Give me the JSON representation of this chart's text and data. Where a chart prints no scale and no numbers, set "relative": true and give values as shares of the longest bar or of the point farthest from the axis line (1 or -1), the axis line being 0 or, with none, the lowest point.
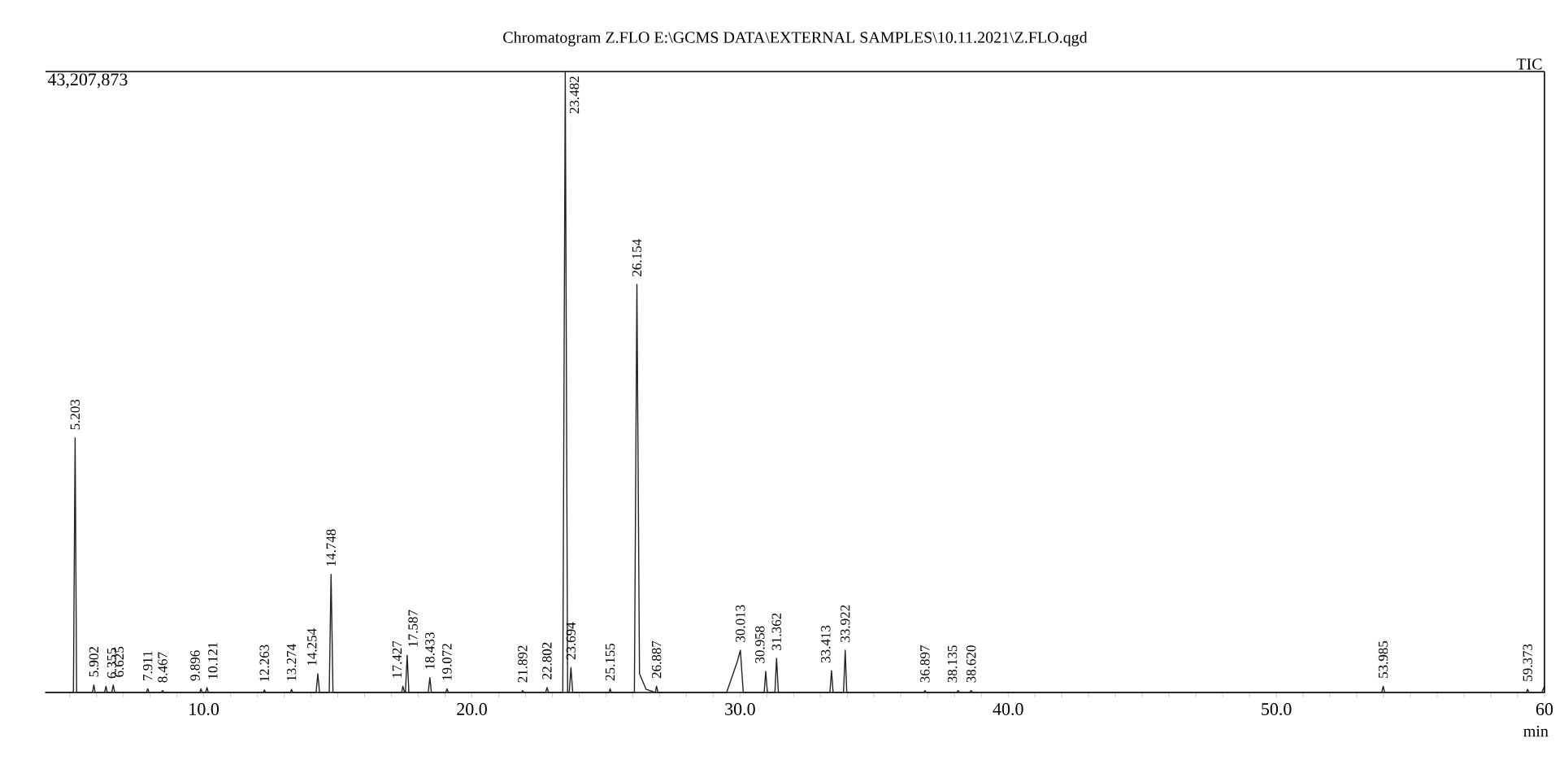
{
  "chart_data": {
    "type": "line",
    "title": "Chromatogram Z.FLO E:\\GCMS DATA\\EXTERNAL SAMPLES\\10.11.2021\\Z.FLO.qgd",
    "xlabel": "min",
    "relative": true,
    "color": "#222222",
    "xlim": [
      4.1,
      60
    ],
    "xticks": [
      {
        "value": 5,
        "label": null
      },
      {
        "value": 6,
        "label": null
      },
      {
        "value": 7,
        "label": null
      },
      {
        "value": 8,
        "label": null
      },
      {
        "value": 9,
        "label": null
      },
      {
        "value": 10,
        "label": "10.0"
      },
      {
        "value": 11,
        "label": null
      },
      {
        "value": 12,
        "label": null
      },
      {
        "value": 13,
        "label": null
      },
      {
        "value": 14,
        "label": null
      },
      {
        "value": 15,
        "label": null
      },
      {
        "value": 16,
        "label": null
      },
      {
        "value": 17,
        "label": null
      },
      {
        "value": 18,
        "label": null
      },
      {
        "value": 19,
        "label": null
      },
      {
        "value": 20,
        "label": "20.0"
      },
      {
        "value": 21,
        "label": null
      },
      {
        "value": 22,
        "label": null
      },
      {
        "value": 23,
        "label": null
      },
      {
        "value": 24,
        "label": null
      },
      {
        "value": 25,
        "label": null
      },
      {
        "value": 26,
        "label": null
      },
      {
        "value": 27,
        "label": null
      },
      {
        "value": 28,
        "label": null
      },
      {
        "value": 29,
        "label": null
      },
      {
        "value": 30,
        "label": "30.0"
      },
      {
        "value": 31,
        "label": null
      },
      {
        "value": 32,
        "label": null
      },
      {
        "value": 33,
        "label": null
      },
      {
        "value": 34,
        "label": null
      },
      {
        "value": 35,
        "label": null
      },
      {
        "value": 36,
        "label": null
      },
      {
        "value": 37,
        "label": null
      },
      {
        "value": 38,
        "label": null
      },
      {
        "value": 39,
        "label": null
      },
      {
        "value": 40,
        "label": "40.0"
      },
      {
        "value": 41,
        "label": null
      },
      {
        "value": 42,
        "label": null
      },
      {
        "value": 43,
        "label": null
      },
      {
        "value": 44,
        "label": null
      },
      {
        "value": 45,
        "label": null
      },
      {
        "value": 46,
        "label": null
      },
      {
        "value": 47,
        "label": null
      },
      {
        "value": 48,
        "label": null
      },
      {
        "value": 49,
        "label": null
      },
      {
        "value": 50,
        "label": "50.0"
      },
      {
        "value": 51,
        "label": null
      },
      {
        "value": 52,
        "label": null
      },
      {
        "value": 53,
        "label": null
      },
      {
        "value": 54,
        "label": null
      },
      {
        "value": 55,
        "label": null
      },
      {
        "value": 56,
        "label": null
      },
      {
        "value": 57,
        "label": null
      },
      {
        "value": 58,
        "label": null
      },
      {
        "value": 59,
        "label": null
      },
      60
    ],
    "x": [
      4.1,
      5.14,
      5.203,
      5.26,
      5.85,
      5.902,
      5.95,
      6.3,
      6.355,
      6.4,
      6.57,
      6.625,
      6.68,
      7.86,
      7.911,
      7.96,
      8.42,
      8.467,
      8.51,
      9.85,
      9.896,
      9.94,
      10.07,
      10.121,
      10.17,
      12.22,
      12.263,
      12.31,
      13.23,
      13.274,
      13.32,
      14.19,
      14.254,
      14.32,
      14.68,
      14.748,
      14.82,
      17.38,
      17.427,
      17.49,
      17.52,
      17.587,
      17.65,
      18.37,
      18.433,
      18.49,
      19.02,
      19.072,
      19.12,
      21.85,
      21.892,
      21.94,
      22.75,
      22.802,
      22.86,
      23.39,
      23.482,
      23.57,
      23.63,
      23.694,
      23.76,
      25.11,
      25.155,
      25.2,
      26.06,
      26.154,
      26.25,
      26.5,
      26.84,
      26.887,
      26.94,
      29.5,
      29.9,
      30.013,
      30.12,
      30.9,
      30.958,
      31.02,
      31.3,
      31.362,
      31.43,
      33.35,
      33.413,
      33.47,
      33.86,
      33.922,
      33.98,
      36.85,
      36.897,
      36.94,
      38.09,
      38.135,
      38.18,
      38.57,
      38.62,
      38.67,
      53.93,
      53.985,
      54.04,
      59.32,
      59.373,
      59.42,
      59.9,
      60
    ],
    "values": [
      0,
      0,
      0.41,
      0,
      0,
      0.012,
      0,
      0,
      0.01,
      0,
      0,
      0.012,
      0,
      0,
      0.006,
      0,
      0,
      0.003,
      0,
      0,
      0.006,
      0,
      0,
      0.008,
      0,
      0,
      0.004,
      0,
      0,
      0.005,
      0,
      0,
      0.03,
      0,
      0,
      0.19,
      0,
      0,
      0.01,
      0,
      0,
      0.06,
      0,
      0,
      0.024,
      0,
      0,
      0.006,
      0,
      0,
      0.003,
      0,
      0,
      0.008,
      0,
      0,
      1.0,
      0,
      0,
      0.04,
      0,
      0,
      0.006,
      0,
      0,
      0.657,
      0.03,
      0.005,
      0,
      0.01,
      0,
      0,
      0.05,
      0.068,
      0,
      0,
      0.034,
      0,
      0,
      0.055,
      0,
      0,
      0.035,
      0,
      0,
      0.068,
      0,
      0,
      0.003,
      0,
      0,
      0.003,
      0,
      0,
      0.003,
      0,
      0,
      0.01,
      0,
      0,
      0.005,
      0,
      0,
      0.01
    ],
    "annotations": [
      "43,207,873",
      "TIC",
      {
        "text": "5.203",
        "x": 5.203,
        "y": 0.41
      },
      {
        "text": "5.902",
        "x": 5.902,
        "y": 0.012
      },
      {
        "text": "6.355",
        "x": 6.355,
        "y": 0.01
      },
      {
        "text": "6.625",
        "x": 6.625,
        "y": 0.012
      },
      {
        "text": "7.911",
        "x": 7.911,
        "y": 0.006
      },
      {
        "text": "8.467",
        "x": 8.467,
        "y": 0.003
      },
      {
        "text": "9.896",
        "x": 9.896,
        "y": 0.006
      },
      {
        "text": "10.121",
        "x": 10.121,
        "y": 0.008
      },
      {
        "text": "12.263",
        "x": 12.263,
        "y": 0.004
      },
      {
        "text": "13.274",
        "x": 13.274,
        "y": 0.005
      },
      {
        "text": "14.254",
        "x": 14.254,
        "y": 0.03
      },
      {
        "text": "14.748",
        "x": 14.748,
        "y": 0.19
      },
      {
        "text": "17.427",
        "x": 17.427,
        "y": 0.01
      },
      {
        "text": "17.587",
        "x": 17.587,
        "y": 0.06
      },
      {
        "text": "18.433",
        "x": 18.433,
        "y": 0.024
      },
      {
        "text": "19.072",
        "x": 19.072,
        "y": 0.006
      },
      {
        "text": "21.892",
        "x": 21.892,
        "y": 0.003
      },
      {
        "text": "22.802",
        "x": 22.802,
        "y": 0.008
      },
      {
        "text": "23.482",
        "x": 23.482,
        "y": 1.0
      },
      {
        "text": "23.694",
        "x": 23.694,
        "y": 0.04
      },
      {
        "text": "25.155",
        "x": 25.155,
        "y": 0.006
      },
      {
        "text": "26.154",
        "x": 26.154,
        "y": 0.657
      },
      {
        "text": "26.887",
        "x": 26.887,
        "y": 0.01
      },
      {
        "text": "30.013",
        "x": 30.013,
        "y": 0.068
      },
      {
        "text": "30.958",
        "x": 30.958,
        "y": 0.034
      },
      {
        "text": "31.362",
        "x": 31.362,
        "y": 0.055
      },
      {
        "text": "33.413",
        "x": 33.413,
        "y": 0.035
      },
      {
        "text": "33.922",
        "x": 33.922,
        "y": 0.068
      },
      {
        "text": "36.897",
        "x": 36.897,
        "y": 0.003
      },
      {
        "text": "38.135",
        "x": 38.135,
        "y": 0.003
      },
      {
        "text": "38.620",
        "x": 38.62,
        "y": 0.003
      },
      {
        "text": "53.985",
        "x": 53.985,
        "y": 0.01
      },
      {
        "text": "59.373",
        "x": 59.373,
        "y": 0.005
      }
    ]
  }
}
